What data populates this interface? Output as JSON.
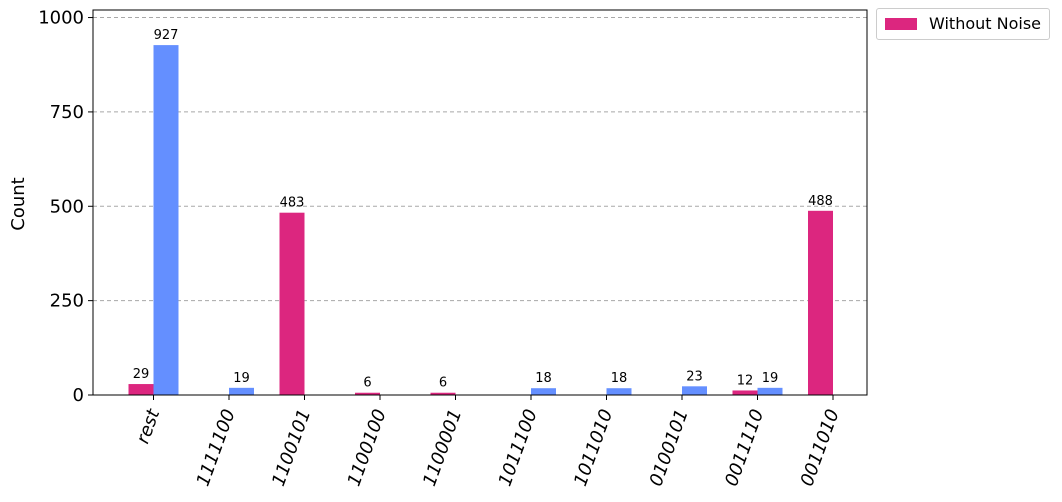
{
  "chart_data": {
    "type": "bar",
    "ylabel": "Count",
    "ylim": [
      0,
      1020
    ],
    "yticks": [
      0,
      250,
      500,
      750,
      1000
    ],
    "grid": "horizontal-dashed",
    "legend_placement": "outside-top-right",
    "categories": [
      "rest",
      "1111100",
      "1100101",
      "1100100",
      "1100001",
      "1011100",
      "1011010",
      "0100101",
      "0011110",
      "0011010"
    ],
    "series": [
      {
        "name": "Without Noise",
        "color": "#dc267f",
        "values": [
          29,
          null,
          483,
          6,
          6,
          null,
          null,
          null,
          12,
          488
        ]
      },
      {
        "color": "#648fff",
        "values": [
          927,
          19,
          null,
          null,
          null,
          18,
          18,
          23,
          19,
          null
        ]
      }
    ]
  }
}
